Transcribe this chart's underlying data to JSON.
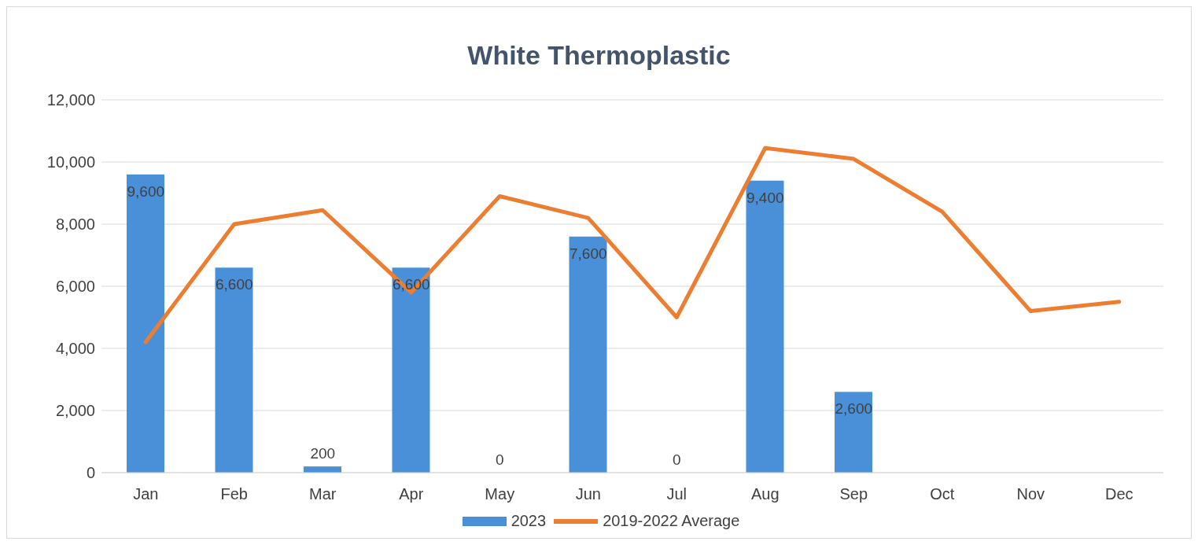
{
  "chart_data": {
    "type": "bar",
    "title": "White Thermoplastic",
    "categories": [
      "Jan",
      "Feb",
      "Mar",
      "Apr",
      "May",
      "Jun",
      "Jul",
      "Aug",
      "Sep",
      "Oct",
      "Nov",
      "Dec"
    ],
    "series": [
      {
        "name": "2023",
        "color": "#4a90d9",
        "values": [
          9600,
          6600,
          200,
          6600,
          0,
          7600,
          0,
          9400,
          2600,
          null,
          null,
          null
        ],
        "value_labels": [
          "9,600",
          "6,600",
          "200",
          "6,600",
          "0",
          "7,600",
          "0",
          "9,400",
          "2,600",
          null,
          null,
          null
        ]
      },
      {
        "name": "2019-2022 Average",
        "type": "line",
        "color": "#ed7d31",
        "values": [
          4200,
          8000,
          8450,
          5800,
          8900,
          8200,
          5000,
          10450,
          10100,
          8400,
          5200,
          5500
        ]
      }
    ],
    "ylim": [
      0,
      12000
    ],
    "yticks": [
      0,
      {
        "value": 2000,
        "label": "2,000"
      },
      {
        "value": 4000,
        "label": "4,000"
      },
      {
        "value": 6000,
        "label": "6,000"
      },
      {
        "value": 8000,
        "label": "8,000"
      },
      {
        "value": 10000,
        "label": "10,000"
      },
      {
        "value": 12000,
        "label": "12,000"
      }
    ],
    "grid": "y",
    "legend": "bottom",
    "marker": "none",
    "line_style": "solid"
  }
}
